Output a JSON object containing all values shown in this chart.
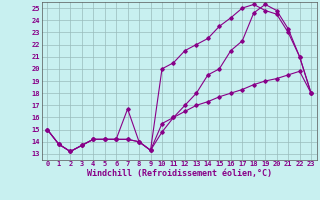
{
  "xlabel": "Windchill (Refroidissement éolien,°C)",
  "background_color": "#c8f0f0",
  "line_color": "#880088",
  "grid_color": "#99bbbb",
  "xlim": [
    -0.5,
    23.5
  ],
  "ylim": [
    12.5,
    25.5
  ],
  "xticks": [
    0,
    1,
    2,
    3,
    4,
    5,
    6,
    7,
    8,
    9,
    10,
    11,
    12,
    13,
    14,
    15,
    16,
    17,
    18,
    19,
    20,
    21,
    22,
    23
  ],
  "yticks": [
    13,
    14,
    15,
    16,
    17,
    18,
    19,
    20,
    21,
    22,
    23,
    24,
    25
  ],
  "curve1_x": [
    0,
    1,
    2,
    3,
    4,
    5,
    6,
    7,
    8,
    9,
    10,
    11,
    12,
    13,
    14,
    15,
    16,
    17,
    18,
    19,
    20,
    21,
    22,
    23
  ],
  "curve1_y": [
    15.0,
    13.8,
    13.2,
    13.7,
    14.2,
    14.2,
    14.2,
    14.2,
    14.0,
    13.3,
    14.8,
    16.0,
    17.0,
    18.0,
    19.5,
    20.0,
    21.5,
    22.3,
    24.6,
    25.3,
    24.8,
    23.3,
    21.0,
    18.0
  ],
  "curve2_x": [
    0,
    1,
    2,
    3,
    4,
    5,
    6,
    7,
    8,
    9,
    10,
    11,
    12,
    13,
    14,
    15,
    16,
    17,
    18,
    19,
    20,
    21,
    22,
    23
  ],
  "curve2_y": [
    15.0,
    13.8,
    13.2,
    13.7,
    14.2,
    14.2,
    14.2,
    16.7,
    14.0,
    13.3,
    20.0,
    20.5,
    21.5,
    22.0,
    22.5,
    23.5,
    24.2,
    25.0,
    25.3,
    24.8,
    24.5,
    23.0,
    21.0,
    18.0
  ],
  "curve3_x": [
    0,
    1,
    2,
    3,
    4,
    5,
    6,
    7,
    8,
    9,
    10,
    11,
    12,
    13,
    14,
    15,
    16,
    17,
    18,
    19,
    20,
    21,
    22,
    23
  ],
  "curve3_y": [
    15.0,
    13.8,
    13.2,
    13.7,
    14.2,
    14.2,
    14.2,
    14.2,
    14.0,
    13.3,
    15.5,
    16.0,
    16.5,
    17.0,
    17.3,
    17.7,
    18.0,
    18.3,
    18.7,
    19.0,
    19.2,
    19.5,
    19.8,
    18.0
  ],
  "tick_fontsize": 5.0,
  "label_fontsize": 6.0,
  "marker": "D",
  "marker_size": 1.8,
  "linewidth": 0.8
}
